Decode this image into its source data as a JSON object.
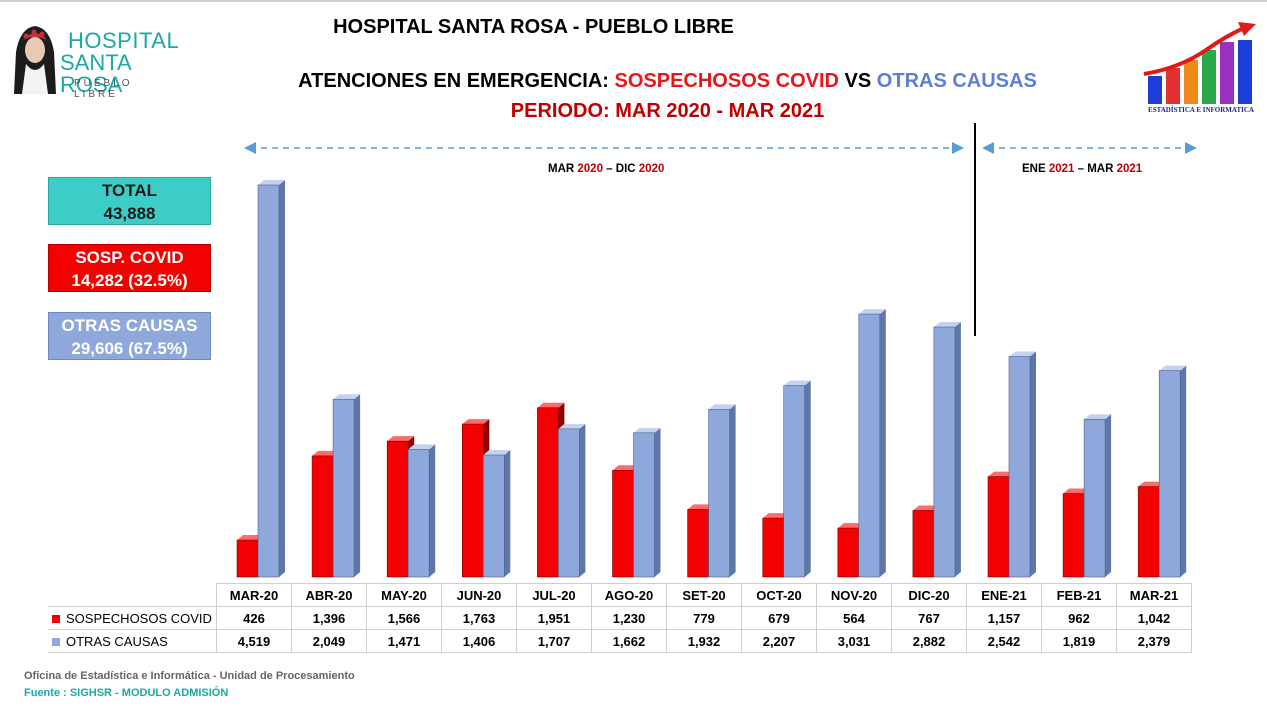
{
  "header": {
    "title": "HOSPITAL SANTA ROSA - PUEBLO LIBRE",
    "subtitle_prefix": "ATENCIONES EN EMERGENCIA: ",
    "subtitle_covid": "SOSPECHOSOS COVID",
    "subtitle_vs": " VS ",
    "subtitle_otras": "OTRAS CAUSAS",
    "period": "PERIODO: MAR 2020 - MAR 2021"
  },
  "logo": {
    "line1": "HOSPITAL",
    "line2": "SANTA ROSA",
    "line3": "PUEBLO LIBRE",
    "stat_caption": "ESTADÍSTICA E INFORMATICA"
  },
  "summary": {
    "total_label": "TOTAL",
    "total_value": "43,888",
    "covid_label": "SOSP. COVID",
    "covid_value": "14,282 (32.5%)",
    "otras_label": "OTRAS CAUSAS",
    "otras_value": "29,606 (67.5%)"
  },
  "periods": {
    "p1_a": "MAR ",
    "p1_b": "2020",
    "p1_c": " – DIC ",
    "p1_d": "2020",
    "p2_a": "ENE ",
    "p2_b": "2021",
    "p2_c": " – MAR ",
    "p2_d": "2021"
  },
  "colors": {
    "covid": "#f50000",
    "otras": "#8fa8dc",
    "teal": "#3dcdc8",
    "dark_red": "#c00000"
  },
  "chart_data": {
    "type": "bar",
    "categories": [
      "MAR-20",
      "ABR-20",
      "MAY-20",
      "JUN-20",
      "JUL-20",
      "AGO-20",
      "SET-20",
      "OCT-20",
      "NOV-20",
      "DIC-20",
      "ENE-21",
      "FEB-21",
      "MAR-21"
    ],
    "series": [
      {
        "name": "SOSPECHOSOS COVID",
        "values": [
          426,
          1396,
          1566,
          1763,
          1951,
          1230,
          779,
          679,
          564,
          767,
          1157,
          962,
          1042
        ],
        "labels": [
          "426",
          "1,396",
          "1,566",
          "1,763",
          "1,951",
          "1,230",
          "779",
          "679",
          "564",
          "767",
          "1,157",
          "962",
          "1,042"
        ]
      },
      {
        "name": "OTRAS CAUSAS",
        "values": [
          4519,
          2049,
          1471,
          1406,
          1707,
          1662,
          1932,
          2207,
          3031,
          2882,
          2542,
          1819,
          2379
        ],
        "labels": [
          "4,519",
          "2,049",
          "1,471",
          "1,406",
          "1,707",
          "1,662",
          "1,932",
          "2,207",
          "3,031",
          "2,882",
          "2,542",
          "1,819",
          "2,379"
        ]
      }
    ],
    "ylim": [
      0,
      4519
    ],
    "grid": false,
    "style": "3d"
  },
  "footer": {
    "line1": "Oficina de Estadística e Informática - Unidad de Procesamiento",
    "line2": "Fuente : SIGHSR - MODULO ADMISIÓN"
  }
}
